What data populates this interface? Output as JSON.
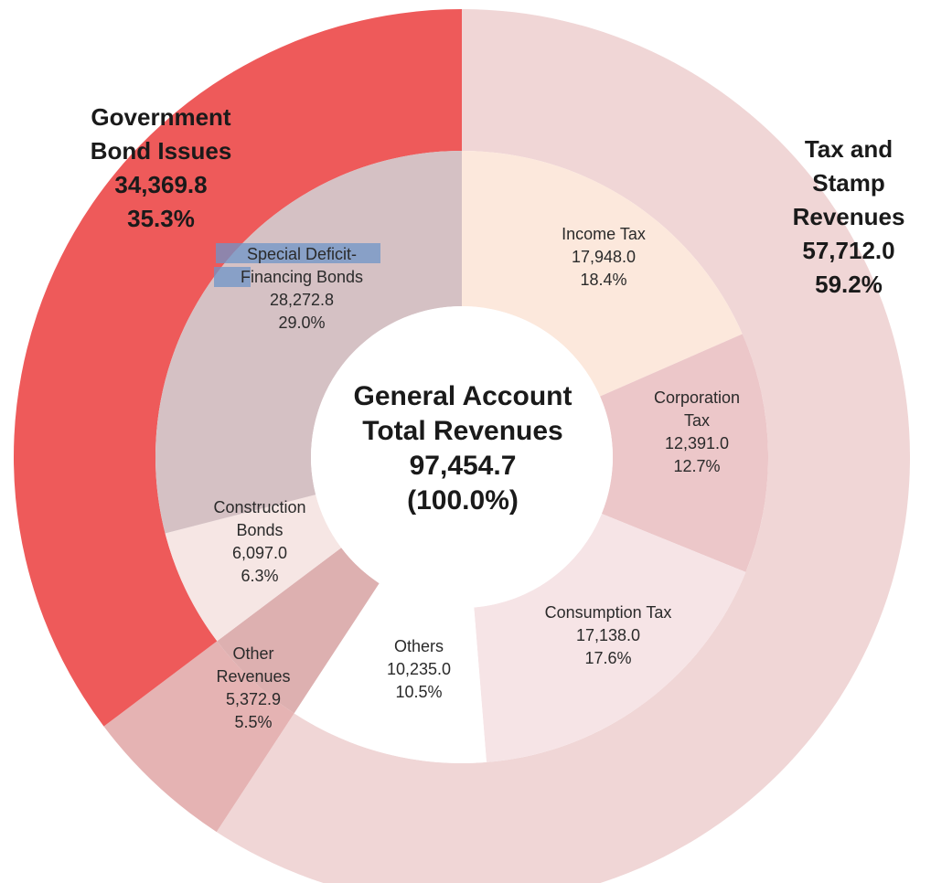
{
  "chart_data": {
    "type": "pie",
    "center": {
      "title_line1": "General Account",
      "title_line2": "Total Revenues",
      "value": "97,454.7",
      "percent": "(100.0%)",
      "total": 97454.7
    },
    "outer_ring": [
      {
        "label_lines": [
          "Tax and",
          "Stamp",
          "Revenues"
        ],
        "value_text": "57,712.0",
        "percent_text": "59.2%",
        "value": 57712.0,
        "color": "#f0d6d6"
      },
      {
        "label_lines": [],
        "value_text": "",
        "percent_text": "",
        "value": 5372.9,
        "color": "#e5b3b3"
      },
      {
        "label_lines": [
          "Government",
          "Bond Issues"
        ],
        "value_text": "34,369.8",
        "percent_text": "35.3%",
        "value": 34369.8,
        "color": "#ee5a5a"
      }
    ],
    "inner_ring": [
      {
        "label_lines": [
          "Income Tax"
        ],
        "value_text": "17,948.0",
        "percent_text": "18.4%",
        "value": 17948.0,
        "color": "#fce8dc"
      },
      {
        "label_lines": [
          "Corporation",
          "Tax"
        ],
        "value_text": "12,391.0",
        "percent_text": "12.7%",
        "value": 12391.0,
        "color": "#ecc7c9"
      },
      {
        "label_lines": [
          "Consumption Tax"
        ],
        "value_text": "17,138.0",
        "percent_text": "17.6%",
        "value": 17138.0,
        "color": "#f6e4e6"
      },
      {
        "label_lines": [
          "Others"
        ],
        "value_text": "10,235.0",
        "percent_text": "10.5%",
        "value": 10235.0,
        "color": "#ffffff"
      },
      {
        "label_lines": [
          "Other",
          "Revenues"
        ],
        "value_text": "5,372.9",
        "percent_text": "5.5%",
        "value": 5372.9,
        "color": "#ddb0b0"
      },
      {
        "label_lines": [
          "Construction",
          "Bonds"
        ],
        "value_text": "6,097.0",
        "percent_text": "6.3%",
        "value": 6097.0,
        "color": "#f6e6e4"
      },
      {
        "label_lines": [
          "Special Deficit-",
          "Financing Bonds"
        ],
        "value_text": "28,272.8",
        "percent_text": "29.0%",
        "value": 28272.8,
        "color": "#d5c1c4"
      }
    ]
  }
}
